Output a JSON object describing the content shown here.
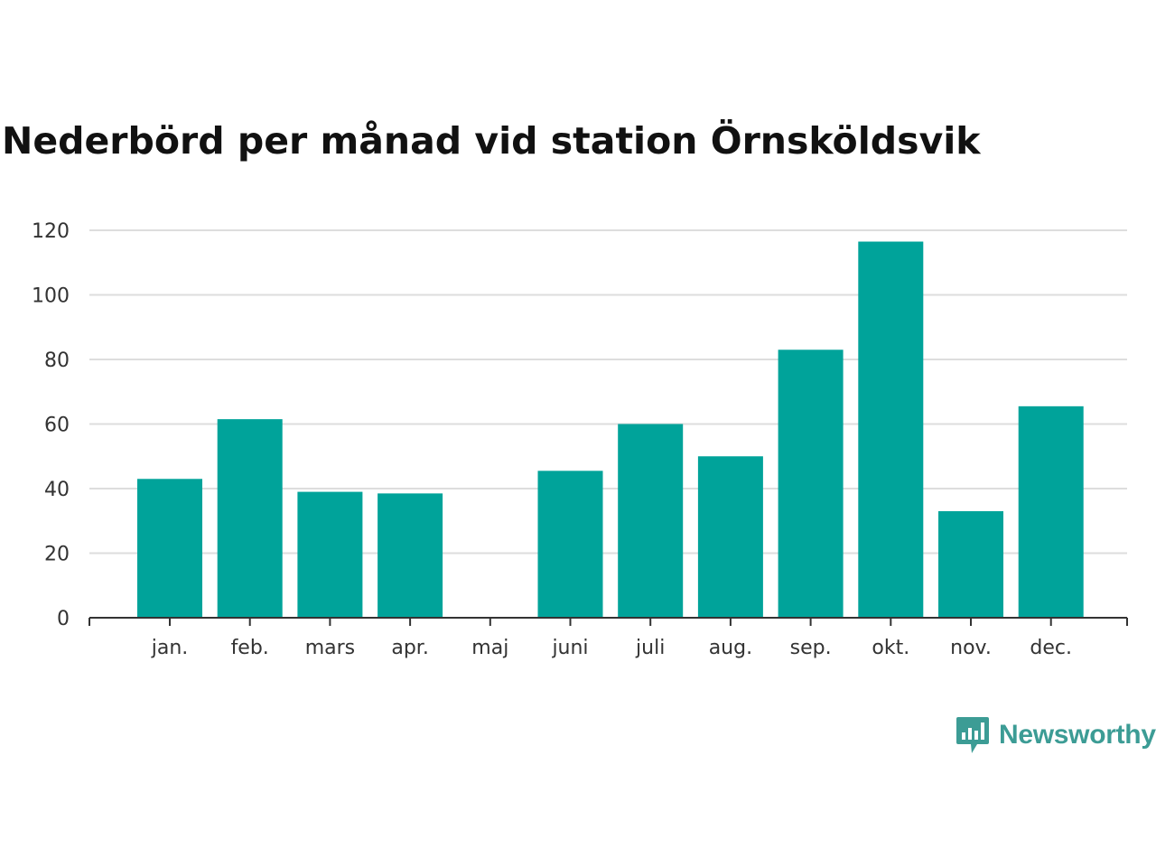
{
  "chart_data": {
    "type": "bar",
    "title": "Nederbörd per månad vid station Örnsköldsvik",
    "xlabel": "",
    "ylabel": "",
    "categories": [
      "jan.",
      "feb.",
      "mars",
      "apr.",
      "maj",
      "juni",
      "juli",
      "aug.",
      "sep.",
      "okt.",
      "nov.",
      "dec."
    ],
    "values": [
      43,
      61.5,
      39,
      38.5,
      null,
      45.5,
      60,
      50,
      83,
      116.5,
      33,
      65.5
    ],
    "ylim": [
      0,
      120
    ],
    "yticks": [
      0,
      20,
      40,
      60,
      80,
      100,
      120
    ],
    "grid": true,
    "bar_color": "#00a39a",
    "grid_color": "#dddddd"
  },
  "branding": {
    "name": "Newsworthy",
    "icon": "chart-speech-bubble-icon",
    "color": "#3c9c95"
  }
}
